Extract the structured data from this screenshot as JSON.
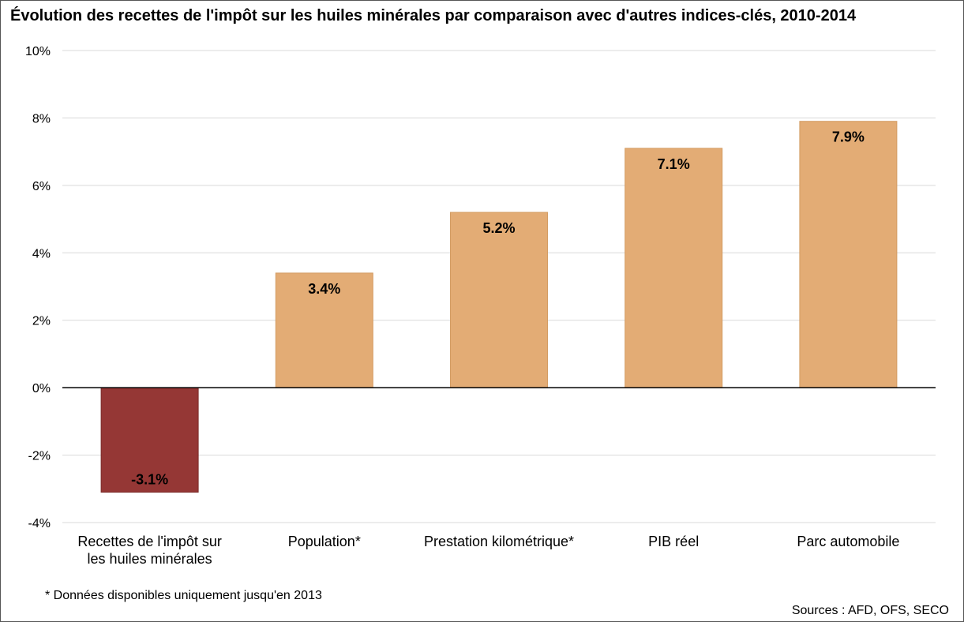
{
  "chart_data": {
    "type": "bar",
    "title": "Évolution des recettes de l'impôt sur les huiles minérales par comparaison avec d'autres indices-clés, 2010-2014",
    "categories": [
      [
        "Recettes de l'impôt sur",
        "les huiles minérales"
      ],
      [
        "Population*"
      ],
      [
        "Prestation kilométrique*"
      ],
      [
        "PIB réel"
      ],
      [
        "Parc automobile"
      ]
    ],
    "values": [
      -3.1,
      3.4,
      5.2,
      7.1,
      7.9
    ],
    "data_labels": [
      "-3.1%",
      "3.4%",
      "5.2%",
      "7.1%",
      "7.9%"
    ],
    "bar_colors": [
      "#953735",
      "#E3AC75",
      "#E3AC75",
      "#E3AC75",
      "#E3AC75"
    ],
    "ylim": [
      -4,
      10
    ],
    "yticks": [
      -4,
      -2,
      0,
      2,
      4,
      6,
      8,
      10
    ],
    "ytick_labels": [
      "-4%",
      "-2%",
      "0%",
      "2%",
      "4%",
      "6%",
      "8%",
      "10%"
    ],
    "xlabel": "",
    "ylabel": "",
    "grid": true,
    "legend": "none"
  },
  "footnote": "* Données disponibles uniquement jusqu'en 2013",
  "source": "Sources : AFD, OFS, SECO"
}
